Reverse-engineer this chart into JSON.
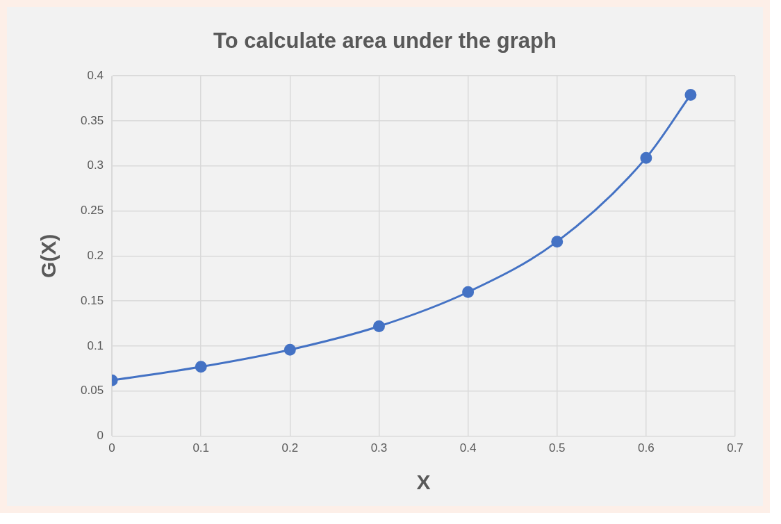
{
  "chart_data": {
    "type": "line",
    "title": "To calculate area under the graph",
    "xlabel": "X",
    "ylabel": "G(X)",
    "x": [
      0,
      0.1,
      0.2,
      0.3,
      0.4,
      0.5,
      0.6,
      0.65
    ],
    "series": [
      {
        "color": "#4472c4",
        "values": [
          0.062,
          0.077,
          0.096,
          0.122,
          0.16,
          0.216,
          0.309,
          0.379
        ]
      }
    ],
    "xlim": [
      0,
      0.7
    ],
    "xticks": [
      0,
      0.1,
      0.2,
      0.3,
      0.4,
      0.5,
      0.6,
      0.7
    ],
    "ylim": [
      0,
      0.4
    ],
    "yticks": [
      0,
      0.05,
      0.1,
      0.15,
      0.2,
      0.25,
      0.3,
      0.35,
      0.4
    ],
    "grid": true,
    "marker": "circle",
    "line_style": "solid"
  }
}
